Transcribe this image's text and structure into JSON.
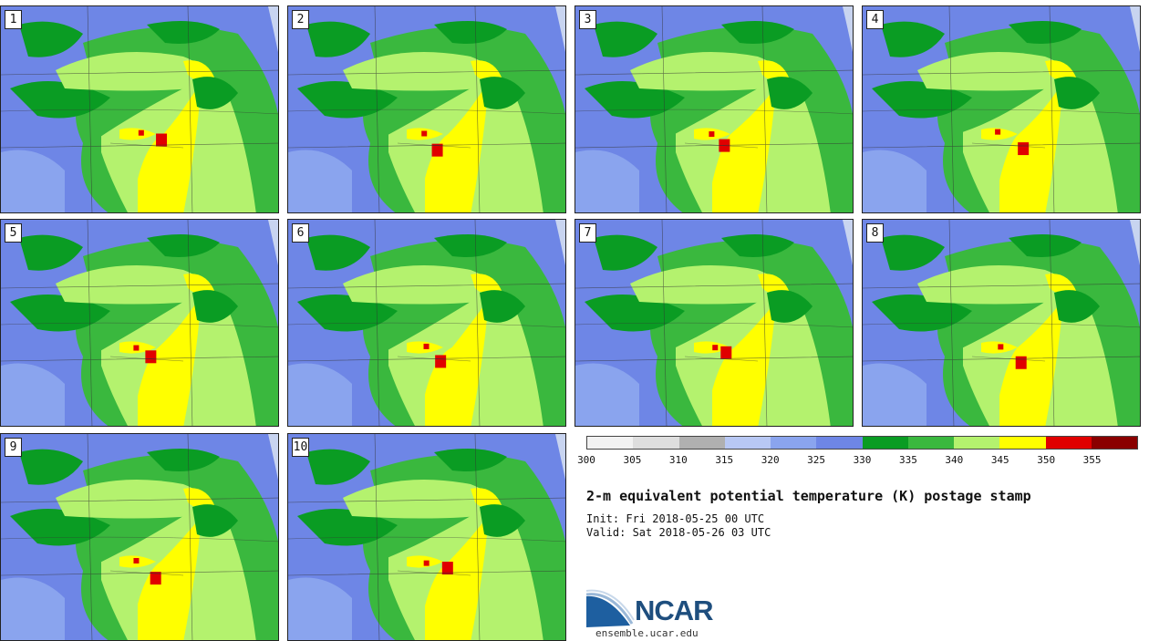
{
  "figure": {
    "title": "2-m equivalent potential temperature (K) postage stamp",
    "init": "Init: Fri 2018-05-25 00 UTC",
    "valid": "Valid: Sat 2018-05-26 03 UTC"
  },
  "panels": [
    {
      "label": "1"
    },
    {
      "label": "2"
    },
    {
      "label": "3"
    },
    {
      "label": "4"
    },
    {
      "label": "5"
    },
    {
      "label": "6"
    },
    {
      "label": "7"
    },
    {
      "label": "8"
    },
    {
      "label": "9"
    },
    {
      "label": "10"
    }
  ],
  "colorbar": {
    "unit": "K",
    "levels": [
      300,
      305,
      310,
      315,
      320,
      325,
      330,
      335,
      340,
      345,
      350,
      355,
      360
    ],
    "tick_labels": [
      "300",
      "305",
      "310",
      "315",
      "320",
      "325",
      "330",
      "335",
      "340",
      "345",
      "350",
      "355"
    ],
    "colors": [
      "#f2f2f2",
      "#dedede",
      "#b0b0b0",
      "#b8c8f4",
      "#8aa4ee",
      "#6e86e6",
      "#0a9c23",
      "#3ab83e",
      "#b4f26e",
      "#ffff00",
      "#e00000",
      "#8a0000"
    ]
  },
  "colors": {
    "land_low": "#6e86e6",
    "land_cool": "#8aa4ee",
    "mid_green": "#3ab83e",
    "dark_green": "#0a9c23",
    "light_green": "#b4f26e",
    "yellow": "#ffff00",
    "red": "#e00000"
  },
  "branding": {
    "logo_text": "NCAR",
    "url": "ensemble.ucar.edu"
  }
}
